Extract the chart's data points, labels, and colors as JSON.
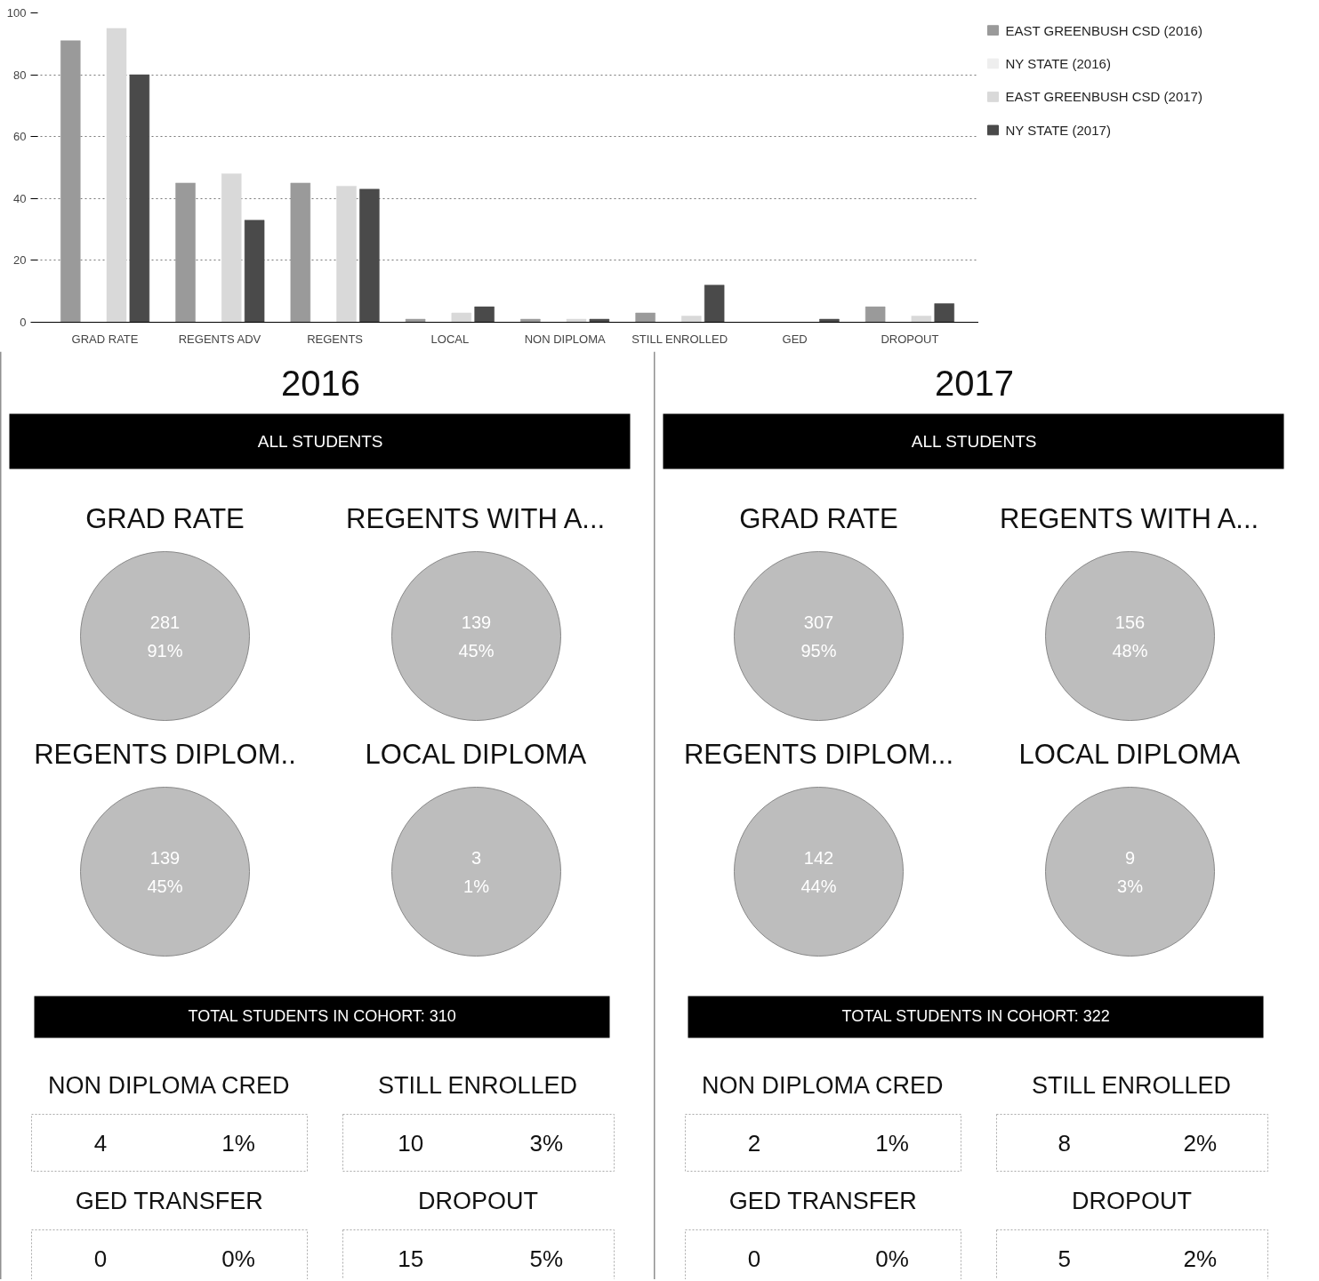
{
  "chart_data": [
    {
      "type": "bar",
      "categories": [
        "GRAD RATE",
        "REGENTS ADV",
        "REGENTS",
        "LOCAL",
        "NON DIPLOMA",
        "STILL ENROLLED",
        "GED",
        "DROPOUT"
      ],
      "series": [
        {
          "name": "EAST GREENBUSH CSD (2016)",
          "color": "#9a9a9a",
          "values": [
            91,
            45,
            45,
            1,
            1,
            3,
            0,
            5
          ]
        },
        {
          "name": "NY STATE (2016)",
          "color": "#eeeeee",
          "values": [
            null,
            null,
            null,
            null,
            null,
            null,
            null,
            null
          ]
        },
        {
          "name": "EAST GREENBUSH CSD (2017)",
          "color": "#d9d9d9",
          "values": [
            95,
            48,
            44,
            3,
            1,
            2,
            0,
            2
          ]
        },
        {
          "name": "NY STATE (2017)",
          "color": "#4a4a4a",
          "values": [
            80,
            33,
            43,
            5,
            1,
            12,
            1,
            6
          ]
        }
      ],
      "ylim": [
        0,
        100
      ],
      "yticks": [
        0,
        20,
        40,
        60,
        80,
        100
      ],
      "grid": "y",
      "legend": "right"
    },
    {
      "type": "other",
      "title": "2016",
      "annotations": [
        "ALL STUDENTS",
        "GRAD RATE",
        "281",
        "91%",
        "REGENTS WITH A...",
        "139",
        "45%",
        "REGENTS DIPLOM..",
        "139",
        "45%",
        "LOCAL DIPLOMA",
        "3",
        "1%",
        "TOTAL STUDENTS IN COHORT: 310",
        "NON DIPLOMA CRED",
        "4",
        "1%",
        "STILL ENROLLED",
        "10",
        "3%",
        "GED TRANSFER",
        "0",
        "0%",
        "DROPOUT",
        "15",
        "5%"
      ]
    },
    {
      "type": "other",
      "title": "2017",
      "annotations": [
        "ALL STUDENTS",
        "GRAD RATE",
        "307",
        "95%",
        "REGENTS WITH A...",
        "156",
        "48%",
        "REGENTS DIPLOM...",
        "142",
        "44%",
        "LOCAL DIPLOMA",
        "9",
        "3%",
        "TOTAL STUDENTS IN COHORT: 322",
        "NON DIPLOMA CRED",
        "2",
        "1%",
        "STILL ENROLLED",
        "8",
        "2%",
        "GED TRANSFER",
        "0",
        "0%",
        "DROPOUT",
        "5",
        "2%"
      ]
    }
  ]
}
